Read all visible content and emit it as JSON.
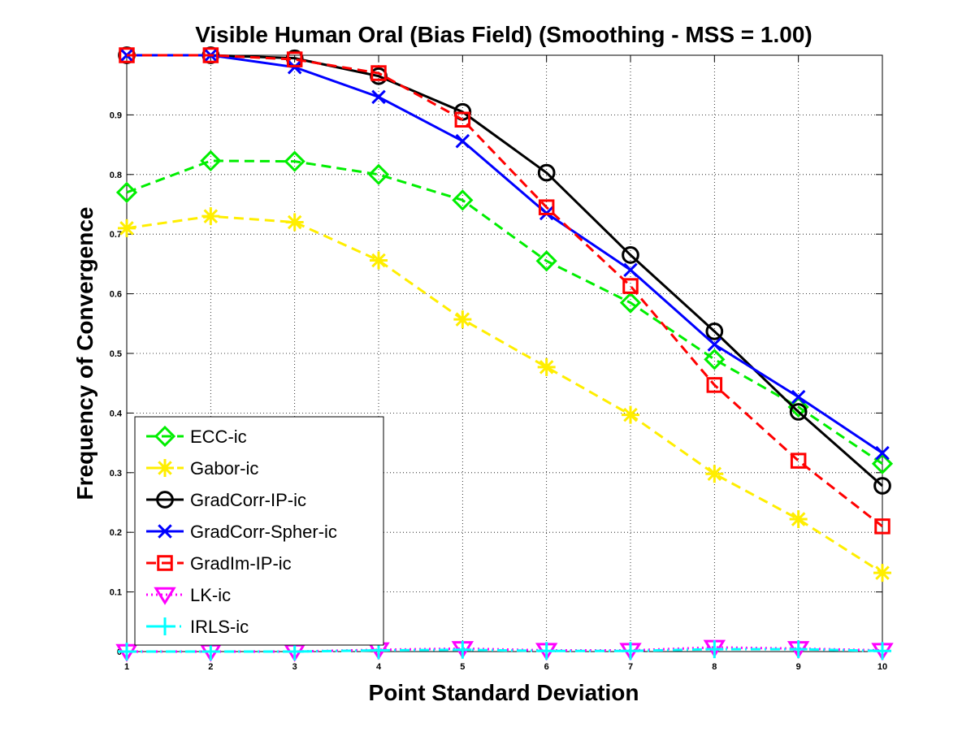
{
  "chart_data": {
    "type": "line",
    "title": "Visible Human Oral (Bias Field) (Smoothing - MSS = 1.00)",
    "xlabel": "Point Standard Deviation",
    "ylabel": "Frequency of Convergence",
    "x": [
      1,
      2,
      3,
      4,
      5,
      6,
      7,
      8,
      9,
      10
    ],
    "xlim": [
      1,
      10
    ],
    "ylim": [
      0,
      1
    ],
    "xticks": [
      "1",
      "2",
      "3",
      "4",
      "5",
      "6",
      "7",
      "8",
      "9",
      "10"
    ],
    "yticks": [
      "0",
      "0.1",
      "0.2",
      "0.3",
      "0.4",
      "0.5",
      "0.6",
      "0.7",
      "0.8",
      "0.9"
    ],
    "ytick_values": [
      0,
      0.1,
      0.2,
      0.3,
      0.4,
      0.5,
      0.6,
      0.7,
      0.8,
      0.9
    ],
    "grid": true,
    "legend_position": "bottom-left",
    "series": [
      {
        "name": "ECC-ic",
        "color": "#00ee00",
        "dash": "dashed",
        "marker": "diamond",
        "values": [
          0.77,
          0.823,
          0.822,
          0.8,
          0.757,
          0.655,
          0.585,
          0.49,
          0.41,
          0.315
        ]
      },
      {
        "name": "Gabor-ic",
        "color": "#ffee00",
        "dash": "dashed",
        "marker": "asterisk",
        "values": [
          0.71,
          0.73,
          0.72,
          0.656,
          0.557,
          0.477,
          0.397,
          0.298,
          0.222,
          0.132
        ]
      },
      {
        "name": "GradCorr-IP-ic",
        "color": "#000000",
        "dash": "solid",
        "marker": "circle",
        "values": [
          1.0,
          1.0,
          0.995,
          0.965,
          0.905,
          0.803,
          0.665,
          0.537,
          0.402,
          0.278
        ]
      },
      {
        "name": "GradCorr-Spher-ic",
        "color": "#0000ff",
        "dash": "solid",
        "marker": "x",
        "values": [
          1.0,
          1.0,
          0.98,
          0.93,
          0.856,
          0.735,
          0.64,
          0.515,
          0.427,
          0.333
        ]
      },
      {
        "name": "GradIm-IP-ic",
        "color": "#ff0000",
        "dash": "dashed",
        "marker": "square",
        "values": [
          1.0,
          1.0,
          0.993,
          0.97,
          0.892,
          0.745,
          0.613,
          0.447,
          0.32,
          0.21
        ]
      },
      {
        "name": "LK-ic",
        "color": "#ff00ff",
        "dash": "dotted",
        "marker": "triangle-down",
        "values": [
          0.0,
          0.0,
          0.0,
          0.003,
          0.005,
          0.002,
          0.002,
          0.007,
          0.005,
          0.002
        ]
      },
      {
        "name": "IRLS-ic",
        "color": "#00ffff",
        "dash": "dashdot",
        "marker": "plus",
        "values": [
          0.0,
          0.0,
          0.0,
          0.002,
          0.003,
          0.001,
          0.001,
          0.004,
          0.004,
          0.001
        ]
      }
    ]
  }
}
